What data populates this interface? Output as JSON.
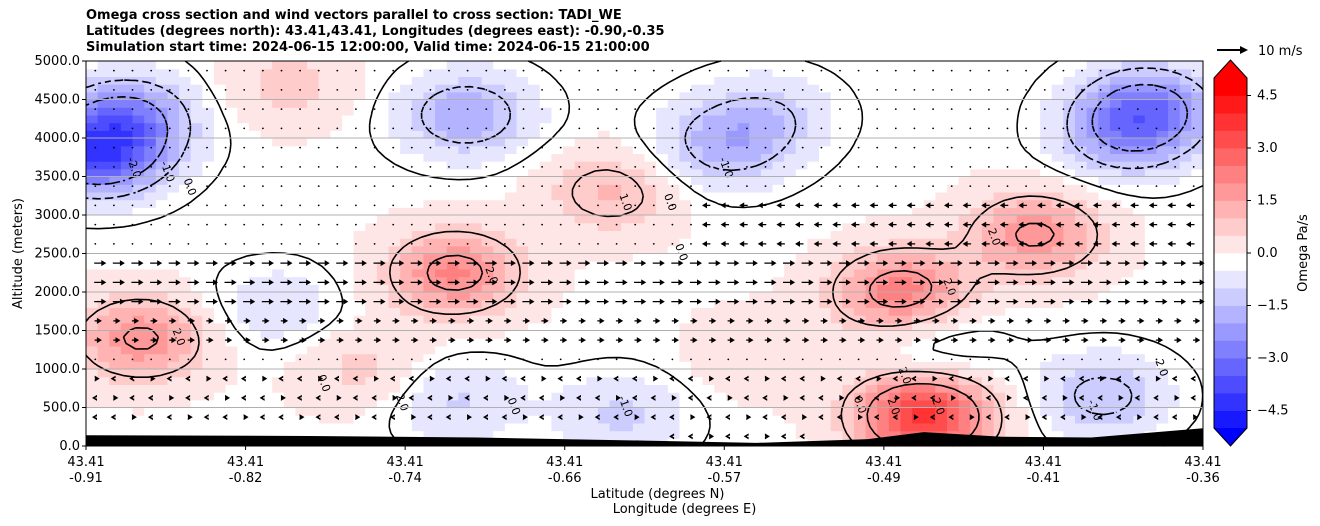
{
  "chart_data": {
    "type": "heatmap",
    "title_lines": [
      "Omega cross section and wind vectors parallel to cross section: TADI_WE",
      "Latitudes (degrees north): 43.41,43.41, Longitudes (degrees east): -0.90,-0.35",
      "Simulation start time: 2024-06-15 12:00:00, Valid time: 2024-06-15 21:00:00"
    ],
    "ylabel": "Altitude (meters)",
    "xlabel_lines": [
      "Latitude (degrees N)",
      "Longitude (degrees E)"
    ],
    "ylim": [
      0,
      5000
    ],
    "y_ticks": [
      "0.0",
      "500.0",
      "1000.0",
      "1500.0",
      "2000.0",
      "2500.0",
      "3000.0",
      "3500.0",
      "4000.0",
      "4500.0",
      "5000.0"
    ],
    "x_ticks": [
      {
        "lat": "43.41",
        "lon": "-0.91"
      },
      {
        "lat": "43.41",
        "lon": "-0.82"
      },
      {
        "lat": "43.41",
        "lon": "-0.74"
      },
      {
        "lat": "43.41",
        "lon": "-0.66"
      },
      {
        "lat": "43.41",
        "lon": "-0.57"
      },
      {
        "lat": "43.41",
        "lon": "-0.49"
      },
      {
        "lat": "43.41",
        "lon": "-0.41"
      },
      {
        "lat": "43.41",
        "lon": "-0.36"
      }
    ],
    "grid": "horizontal",
    "colorbar": {
      "label": "Omega Pa/s",
      "range": [
        -5.0,
        5.0
      ],
      "ticks": [
        "−4.5",
        "−3.0",
        "−1.5",
        "0.0",
        "1.5",
        "3.0",
        "4.5"
      ],
      "extend": "both",
      "low_color": "#0000ff",
      "high_color": "#ff0000"
    },
    "quiver_key": {
      "label": "10 m/s"
    },
    "contour_labels": [
      "-2.0",
      "-1.0",
      "0.0",
      "1.0",
      "2.0"
    ],
    "omega_field_centers": [
      {
        "x": 0.01,
        "alt": 3800,
        "value": -3.5
      },
      {
        "x": 0.04,
        "alt": 4300,
        "value": -2.0
      },
      {
        "x": 0.34,
        "alt": 4300,
        "value": -1.8
      },
      {
        "x": 0.57,
        "alt": 3900,
        "value": -1.5
      },
      {
        "x": 0.61,
        "alt": 4300,
        "value": -1.0
      },
      {
        "x": 0.95,
        "alt": 4400,
        "value": -2.5
      },
      {
        "x": 0.93,
        "alt": 4000,
        "value": -1.5
      },
      {
        "x": 0.91,
        "alt": 650,
        "value": -1.4
      },
      {
        "x": 0.33,
        "alt": 600,
        "value": -1.0
      },
      {
        "x": 0.48,
        "alt": 400,
        "value": -1.0
      },
      {
        "x": 0.17,
        "alt": 1800,
        "value": -0.8
      },
      {
        "x": 0.76,
        "alt": 1300,
        "value": -0.8
      },
      {
        "x": 0.05,
        "alt": 1400,
        "value": 2.0
      },
      {
        "x": 0.33,
        "alt": 2250,
        "value": 2.2
      },
      {
        "x": 0.73,
        "alt": 2000,
        "value": 2.4
      },
      {
        "x": 0.85,
        "alt": 2750,
        "value": 2.0
      },
      {
        "x": 0.75,
        "alt": 400,
        "value": 3.8
      },
      {
        "x": 0.47,
        "alt": 3300,
        "value": 1.2
      },
      {
        "x": 0.18,
        "alt": 4700,
        "value": 0.8
      },
      {
        "x": 0.25,
        "alt": 1000,
        "value": 0.8
      },
      {
        "x": 0.6,
        "alt": 1200,
        "value": 0.6
      }
    ]
  }
}
